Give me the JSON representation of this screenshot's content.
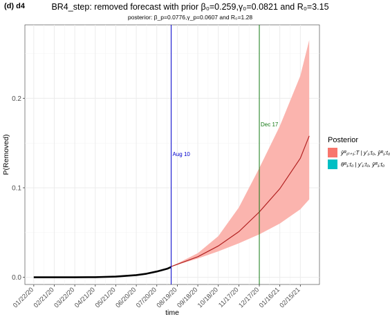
{
  "header": {
    "panel_label": "(d)  d4",
    "title": "BR4_step: removed forecast with prior β₀=0.259,γ₀=0.0821 and R₀=3.15",
    "subtitle": "posterior: β_p=0.0776,γ_p=0.0607 and R₀=1.28"
  },
  "legend": {
    "title": "Posterior",
    "items": [
      {
        "label": "ŷᴿ₁ₜ₊₁:T | y'₁:t₀, ŷᴿ₁:t₀",
        "color": "#f8766d"
      },
      {
        "label": "θᴿ₁:t₀ | y'₁:t₀, ŷᴿ₁:t₀",
        "color": "#00bfc4"
      }
    ]
  },
  "chart_data": {
    "type": "line",
    "xlabel": "time",
    "ylabel": "P(Removed)",
    "x_range": [
      "2020-01-09",
      "2021-03-15"
    ],
    "ylim": [
      -0.008,
      0.282
    ],
    "grid": true,
    "x_ticks": [
      "01/22/20",
      "02/21/20",
      "03/22/20",
      "04/21/20",
      "05/21/20",
      "06/20/20",
      "07/20/20",
      "08/19/20",
      "09/18/20",
      "10/18/20",
      "11/17/20",
      "12/17/20",
      "01/16/21",
      "02/15/21"
    ],
    "y_ticks": [
      0.0,
      0.1,
      0.2
    ],
    "observed": {
      "x": [
        "2020-01-22",
        "2020-02-21",
        "2020-03-22",
        "2020-04-21",
        "2020-05-21",
        "2020-06-20",
        "2020-07-05",
        "2020-07-20",
        "2020-08-04",
        "2020-08-10"
      ],
      "y": [
        0.0,
        0.0,
        0.0,
        0.0002,
        0.0008,
        0.0025,
        0.004,
        0.0065,
        0.0095,
        0.0115
      ]
    },
    "forecast": {
      "x": [
        "2020-08-10",
        "2020-09-18",
        "2020-10-18",
        "2020-11-17",
        "2020-12-17",
        "2021-01-16",
        "2021-02-15",
        "2021-02-28"
      ],
      "median": [
        0.012,
        0.023,
        0.035,
        0.051,
        0.073,
        0.099,
        0.133,
        0.158
      ],
      "lower": [
        0.012,
        0.021,
        0.029,
        0.038,
        0.048,
        0.06,
        0.076,
        0.087
      ],
      "upper": [
        0.012,
        0.027,
        0.046,
        0.078,
        0.122,
        0.169,
        0.225,
        0.265
      ]
    },
    "vlines": [
      {
        "date": "2020-08-10",
        "label": "Aug 10",
        "color": "#0000cc"
      },
      {
        "date": "2020-12-17",
        "label": "Dec 17",
        "color": "#117711"
      }
    ],
    "colors": {
      "band": "#fbb4ae",
      "median": "#b22222",
      "observed": "#000000",
      "grid": "#ebebeb"
    }
  }
}
